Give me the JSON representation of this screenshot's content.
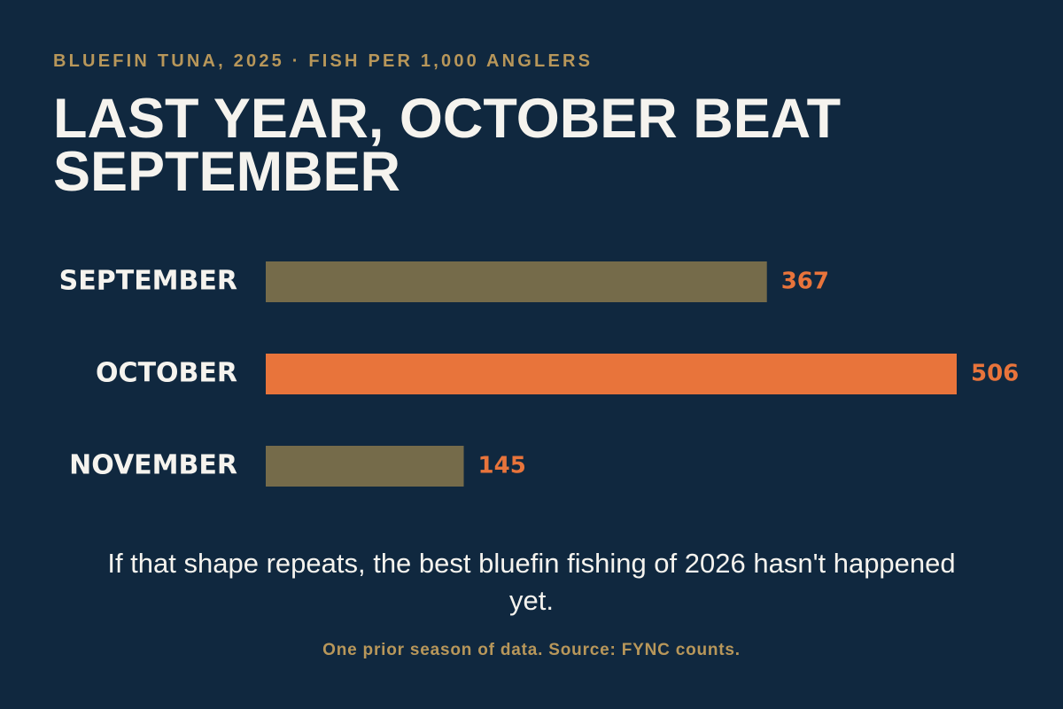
{
  "chart_data": {
    "type": "bar",
    "orientation": "horizontal",
    "subtitle": "BLUEFIN TUNA, 2025 · FISH PER 1,000 ANGLERS",
    "title": "LAST YEAR, OCTOBER BEAT SEPTEMBER",
    "categories": [
      "SEPTEMBER",
      "OCTOBER",
      "NOVEMBER"
    ],
    "values": [
      367,
      506,
      145
    ],
    "colors": [
      "#756b4a",
      "#e8743b",
      "#756b4a"
    ],
    "value_label_color": "#e8743b",
    "caption": "If that shape repeats, the best bluefin fishing of 2026 hasn't happened yet.",
    "note": "One prior season of data. Source: FYNC counts."
  }
}
